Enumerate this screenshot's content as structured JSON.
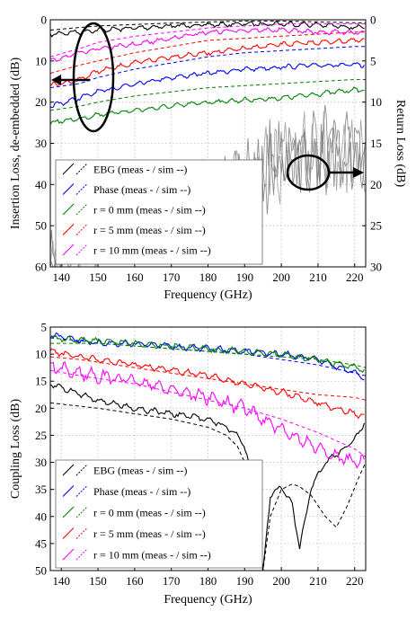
{
  "chart_data": [
    {
      "type": "line",
      "xlabel": "Frequency (GHz)",
      "ylabel": "Insertion Loss, de-embedded (dB)",
      "ylabel_right": "Return Loss (dB)",
      "xlim": [
        137,
        223
      ],
      "ylim": [
        0,
        60
      ],
      "ylim_right": [
        0,
        30
      ],
      "y_inverted": true,
      "grid": true,
      "xticks": [
        "140",
        "150",
        "160",
        "170",
        "180",
        "190",
        "200",
        "210",
        "220"
      ],
      "yticks": [
        "0",
        "10",
        "20",
        "30",
        "40",
        "50",
        "60"
      ],
      "yticks_right": [
        "0",
        "5",
        "10",
        "15",
        "20",
        "25",
        "30"
      ],
      "legend_position": "lower-left",
      "series": [
        {
          "name": "EBG (meas - / sim --)",
          "color": "#000000",
          "x": [
            137,
            150,
            170,
            190,
            200,
            210,
            223
          ],
          "meas": [
            3.5,
            2.5,
            1.5,
            1.0,
            1.0,
            1.2,
            2.0
          ],
          "sim": [
            2.5,
            1.5,
            0.8,
            0.3,
            0.3,
            0.5,
            0.8
          ]
        },
        {
          "name": "Phase (meas - / sim --)",
          "color": "#0000ff",
          "x": [
            137,
            145,
            150,
            160,
            170,
            180,
            190,
            200,
            210,
            220,
            223
          ],
          "meas": [
            21.0,
            19.0,
            17.5,
            15.5,
            14.0,
            13.0,
            12.0,
            11.5,
            11.0,
            11.0,
            11.0
          ],
          "sim": [
            16.5,
            15.5,
            14.0,
            12.0,
            10.5,
            9.0,
            8.0,
            7.5,
            7.0,
            6.5,
            6.5
          ]
        },
        {
          "name": "r = 0 mm (meas - / sim --)",
          "color": "#008000",
          "x": [
            137,
            145,
            150,
            160,
            170,
            180,
            190,
            200,
            210,
            220,
            223
          ],
          "meas": [
            25.0,
            24.0,
            23.0,
            22.0,
            21.0,
            20.0,
            19.5,
            19.0,
            18.0,
            17.0,
            17.0
          ],
          "sim": [
            22.0,
            21.0,
            20.0,
            18.5,
            17.5,
            16.5,
            16.0,
            15.5,
            15.0,
            14.5,
            14.5
          ]
        },
        {
          "name": "r = 5 mm (meas - / sim --)",
          "color": "#ff0000",
          "x": [
            137,
            145,
            150,
            160,
            170,
            180,
            190,
            200,
            210,
            220,
            223
          ],
          "meas": [
            16.0,
            14.5,
            12.5,
            10.5,
            9.0,
            8.0,
            7.0,
            6.0,
            5.5,
            5.0,
            5.0
          ],
          "sim": [
            13.0,
            11.0,
            10.0,
            8.0,
            6.5,
            5.0,
            4.5,
            4.0,
            3.5,
            3.0,
            3.0
          ]
        },
        {
          "name": "r = 10 mm (meas - / sim --)",
          "color": "#ff00ff",
          "x": [
            137,
            145,
            150,
            160,
            170,
            180,
            190,
            200,
            210,
            220,
            223
          ],
          "meas": [
            10.0,
            8.0,
            7.0,
            6.0,
            4.5,
            3.0,
            2.5,
            2.5,
            3.0,
            3.0,
            3.0
          ],
          "sim": [
            9.0,
            7.0,
            5.5,
            4.0,
            3.0,
            2.0,
            1.5,
            1.0,
            1.0,
            1.0,
            1.0
          ]
        },
        {
          "name": "",
          "color": "#808080",
          "axis": "right",
          "note": "return loss traces (unlabelled grey)",
          "x": [
            137,
            150,
            160,
            170,
            180,
            190,
            200,
            210,
            220,
            223
          ],
          "values": [
            29,
            26,
            24,
            22,
            21,
            19,
            17,
            16,
            16,
            18
          ]
        }
      ]
    },
    {
      "type": "line",
      "xlabel": "Frequency (GHz)",
      "ylabel": "Coupling Loss (dB)",
      "xlim": [
        137,
        223
      ],
      "ylim": [
        5,
        50
      ],
      "y_inverted": true,
      "grid": true,
      "xticks": [
        "140",
        "150",
        "160",
        "170",
        "180",
        "190",
        "200",
        "210",
        "220"
      ],
      "yticks": [
        "5",
        "10",
        "15",
        "20",
        "25",
        "30",
        "35",
        "40",
        "45",
        "50"
      ],
      "legend_position": "lower-left",
      "series": [
        {
          "name": "EBG (meas - / sim --)",
          "color": "#000000",
          "x": [
            137,
            150,
            160,
            170,
            180,
            185,
            188,
            190,
            192,
            194,
            195,
            197,
            200,
            203,
            205,
            208,
            212,
            215,
            218,
            221,
            223
          ],
          "meas": [
            15.5,
            18.5,
            20.0,
            21.0,
            22.0,
            23.5,
            25.0,
            27.0,
            33.0,
            45.0,
            50.0,
            36.0,
            34.5,
            38.0,
            46.0,
            35.0,
            30.0,
            28.5,
            27.0,
            25.0,
            22.0
          ],
          "sim": [
            19.0,
            20.0,
            21.0,
            22.0,
            23.5,
            25.0,
            27.0,
            30.0,
            38.0,
            48.0,
            50.0,
            40.0,
            35.0,
            34.0,
            34.5,
            36.0,
            40.0,
            42.0,
            38.0,
            33.0,
            30.0
          ]
        },
        {
          "name": "Phase (meas - / sim --)",
          "color": "#0000ff",
          "x": [
            137,
            145,
            150,
            160,
            170,
            180,
            190,
            200,
            210,
            220,
            223
          ],
          "meas": [
            6.5,
            7.5,
            8.0,
            8.0,
            8.5,
            9.0,
            9.5,
            10.0,
            11.0,
            13.5,
            14.5
          ],
          "sim": [
            7.0,
            7.5,
            8.0,
            8.5,
            9.0,
            9.5,
            10.0,
            11.0,
            12.0,
            13.5,
            14.0
          ]
        },
        {
          "name": "r = 0 mm (meas - / sim --)",
          "color": "#008000",
          "x": [
            137,
            145,
            150,
            160,
            170,
            180,
            190,
            200,
            210,
            220,
            223
          ],
          "meas": [
            7.0,
            7.5,
            7.5,
            8.0,
            8.5,
            9.0,
            9.5,
            10.0,
            11.0,
            12.5,
            13.0
          ],
          "sim": [
            8.0,
            8.0,
            8.0,
            8.5,
            9.0,
            9.5,
            10.0,
            10.5,
            11.0,
            12.0,
            12.5
          ]
        },
        {
          "name": "r = 5 mm (meas - / sim --)",
          "color": "#ff0000",
          "x": [
            137,
            145,
            150,
            160,
            170,
            180,
            190,
            200,
            210,
            220,
            223
          ],
          "meas": [
            9.5,
            10.5,
            11.0,
            12.0,
            13.0,
            14.0,
            15.5,
            17.0,
            19.0,
            21.0,
            21.5
          ],
          "sim": [
            10.5,
            11.0,
            11.5,
            12.5,
            13.5,
            14.5,
            15.5,
            16.5,
            17.5,
            18.0,
            18.5
          ]
        },
        {
          "name": "r = 10 mm (meas - / sim --)",
          "color": "#ff00ff",
          "x": [
            137,
            145,
            150,
            160,
            170,
            180,
            190,
            200,
            210,
            220,
            223
          ],
          "meas": [
            12.5,
            13.5,
            14.0,
            15.0,
            16.5,
            18.0,
            20.0,
            24.0,
            27.5,
            30.0,
            30.0
          ],
          "sim": [
            13.0,
            14.0,
            14.5,
            15.5,
            17.0,
            18.5,
            20.0,
            22.0,
            24.5,
            27.5,
            29.0
          ]
        }
      ]
    }
  ]
}
